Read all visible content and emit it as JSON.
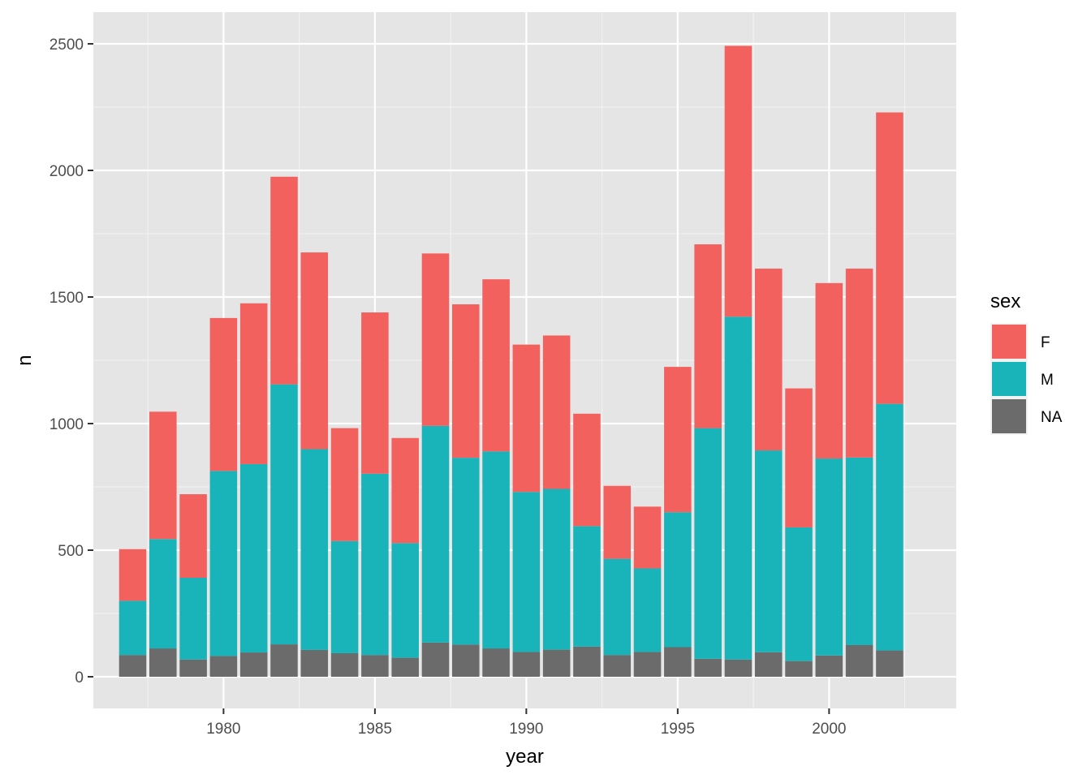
{
  "chart_data": {
    "type": "bar",
    "stacked": true,
    "xlabel": "year",
    "ylabel": "n",
    "x": [
      1977,
      1978,
      1979,
      1980,
      1981,
      1982,
      1983,
      1984,
      1985,
      1986,
      1987,
      1988,
      1989,
      1990,
      1991,
      1992,
      1993,
      1994,
      1995,
      1996,
      1997,
      1998,
      1999,
      2000,
      2001,
      2002
    ],
    "xlim": [
      1975.7,
      2004.2
    ],
    "x_ticks": [
      1980,
      1985,
      1990,
      1995,
      2000
    ],
    "ylim": [
      -125,
      2625
    ],
    "y_ticks": [
      0,
      500,
      1000,
      1500,
      2000,
      2500
    ],
    "grid": true,
    "legend": {
      "title": "sex",
      "position": "right",
      "entries": [
        "F",
        "M",
        "NA"
      ]
    },
    "series": [
      {
        "name": "NA",
        "color": "#6b6b6b",
        "values": [
          86,
          112,
          68,
          82,
          96,
          128,
          106,
          93,
          86,
          75,
          135,
          127,
          112,
          98,
          107,
          119,
          86,
          98,
          117,
          71,
          68,
          97,
          62,
          84,
          125,
          104
        ]
      },
      {
        "name": "M",
        "color": "#19b4b9",
        "values": [
          214,
          432,
          323,
          731,
          744,
          1027,
          793,
          443,
          716,
          453,
          856,
          738,
          778,
          632,
          635,
          476,
          380,
          330,
          533,
          911,
          1354,
          797,
          528,
          778,
          741,
          974
        ]
      },
      {
        "name": "F",
        "color": "#f3615e",
        "values": [
          204,
          503,
          330,
          604,
          635,
          820,
          777,
          446,
          637,
          415,
          681,
          606,
          680,
          582,
          606,
          444,
          288,
          244,
          574,
          726,
          1070,
          718,
          549,
          693,
          746,
          1151
        ]
      }
    ]
  }
}
